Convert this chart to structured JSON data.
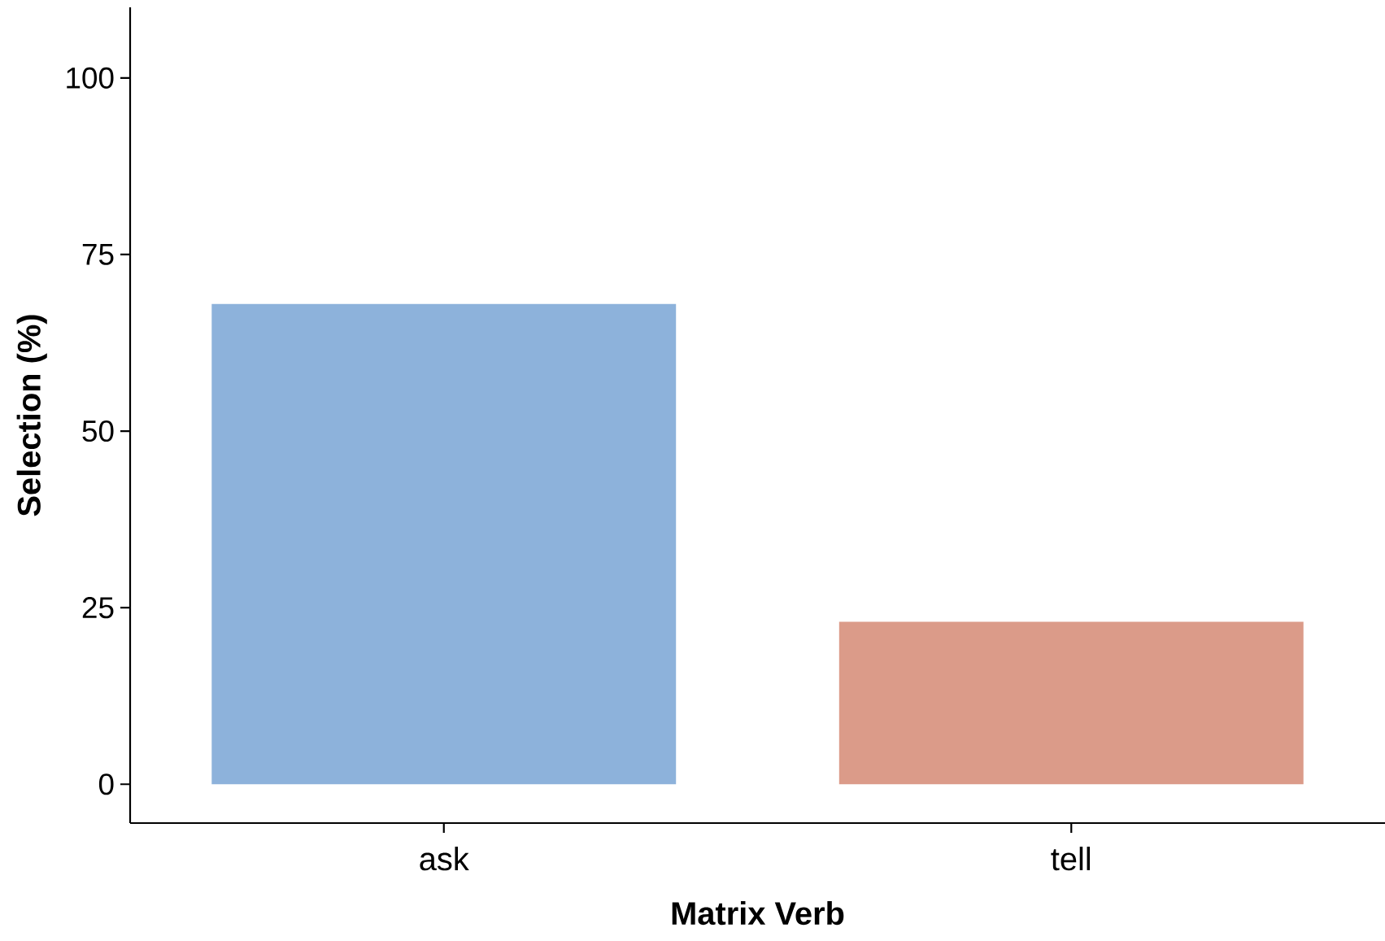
{
  "chart_data": {
    "type": "bar",
    "xlabel": "Matrix Verb",
    "ylabel": "Selection (%)",
    "categories": [
      "ask",
      "tell"
    ],
    "values": [
      68,
      23
    ],
    "colors": [
      "#8db2db",
      "#db9b89"
    ],
    "ylim": [
      -5.5,
      110
    ],
    "yticks": [
      0,
      25,
      50,
      75,
      100
    ]
  }
}
